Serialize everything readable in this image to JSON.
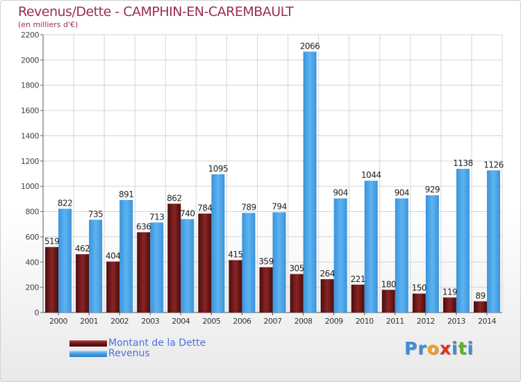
{
  "title": "Revenus/Dette - CAMPHIN-EN-CAREMBAULT",
  "subtitle": "(en milliers d'€)",
  "chart_data": {
    "type": "bar",
    "title": "Revenus/Dette - CAMPHIN-EN-CAREMBAULT",
    "ylabel": "(en milliers d'€)",
    "xlabel": "",
    "ylim": [
      0,
      2200
    ],
    "yticks": [
      0,
      200,
      400,
      600,
      800,
      1000,
      1200,
      1400,
      1600,
      1800,
      2000,
      2200
    ],
    "grid": true,
    "categories": [
      "2000",
      "2001",
      "2002",
      "2003",
      "2004",
      "2005",
      "2006",
      "2007",
      "2008",
      "2009",
      "2010",
      "2011",
      "2012",
      "2013",
      "2014"
    ],
    "series": [
      {
        "name": "Montant de la Dette",
        "color": "#7a1a1a",
        "values": [
          519,
          462,
          404,
          636,
          862,
          784,
          415,
          359,
          305,
          264,
          221,
          180,
          150,
          119,
          89
        ]
      },
      {
        "name": "Revenus",
        "color": "#4aa3e6",
        "values": [
          822,
          735,
          891,
          713,
          740,
          1095,
          789,
          794,
          2066,
          904,
          1044,
          904,
          929,
          1138,
          1126
        ]
      }
    ]
  },
  "legend": {
    "items": [
      {
        "label": "Montant de la Dette",
        "color": "#7a1a1a"
      },
      {
        "label": "Revenus",
        "color": "#4aa3e6"
      }
    ]
  },
  "logo": {
    "letters": [
      "P",
      "r",
      "o",
      "x",
      "i",
      "t",
      "i"
    ],
    "colors": [
      "#3a8fd8",
      "#3a8fd8",
      "#f0a020",
      "#e03020",
      "#3a8fd8",
      "#60b030",
      "#3a8fd8"
    ]
  }
}
